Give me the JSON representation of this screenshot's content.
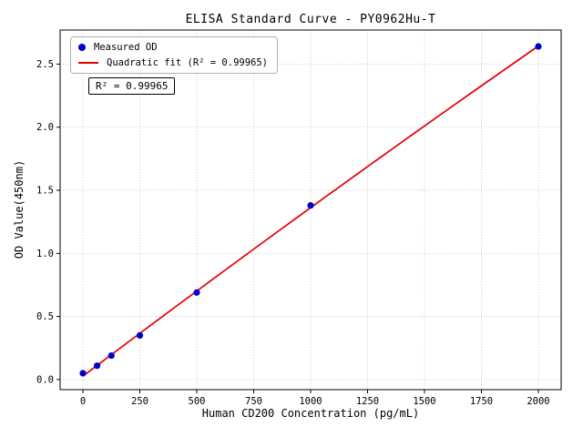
{
  "chart_data": {
    "type": "scatter",
    "title": "ELISA Standard Curve - PY0962Hu-T",
    "xlabel": "Human CD200 Concentration (pg/mL)",
    "ylabel": "OD Value(450nm)",
    "annotation": "R² = 0.99965",
    "series": [
      {
        "name": "Measured OD",
        "type": "scatter",
        "color": "#0000cd",
        "x": [
          0,
          62.5,
          125,
          250,
          500,
          1000,
          2000
        ],
        "y": [
          0.05,
          0.11,
          0.19,
          0.35,
          0.69,
          1.38,
          2.64
        ]
      },
      {
        "name": "Quadratic fit (R² = 0.99965)",
        "type": "line",
        "fit": "quadratic",
        "r_squared": 0.99965,
        "color": "#e50000"
      }
    ],
    "xlim": [
      -100,
      2100
    ],
    "ylim": [
      -0.08,
      2.77
    ],
    "xticks": [
      0,
      250,
      500,
      750,
      1000,
      1250,
      1500,
      1750,
      2000
    ],
    "yticks": [
      0,
      0.5,
      1,
      1.5,
      2,
      2.5
    ],
    "ytick_labels": [
      "0.0",
      "0.5",
      "1.0",
      "1.5",
      "2.0",
      "2.5"
    ],
    "grid": true,
    "grid_style": "dotted",
    "legend_position": "upper left"
  }
}
